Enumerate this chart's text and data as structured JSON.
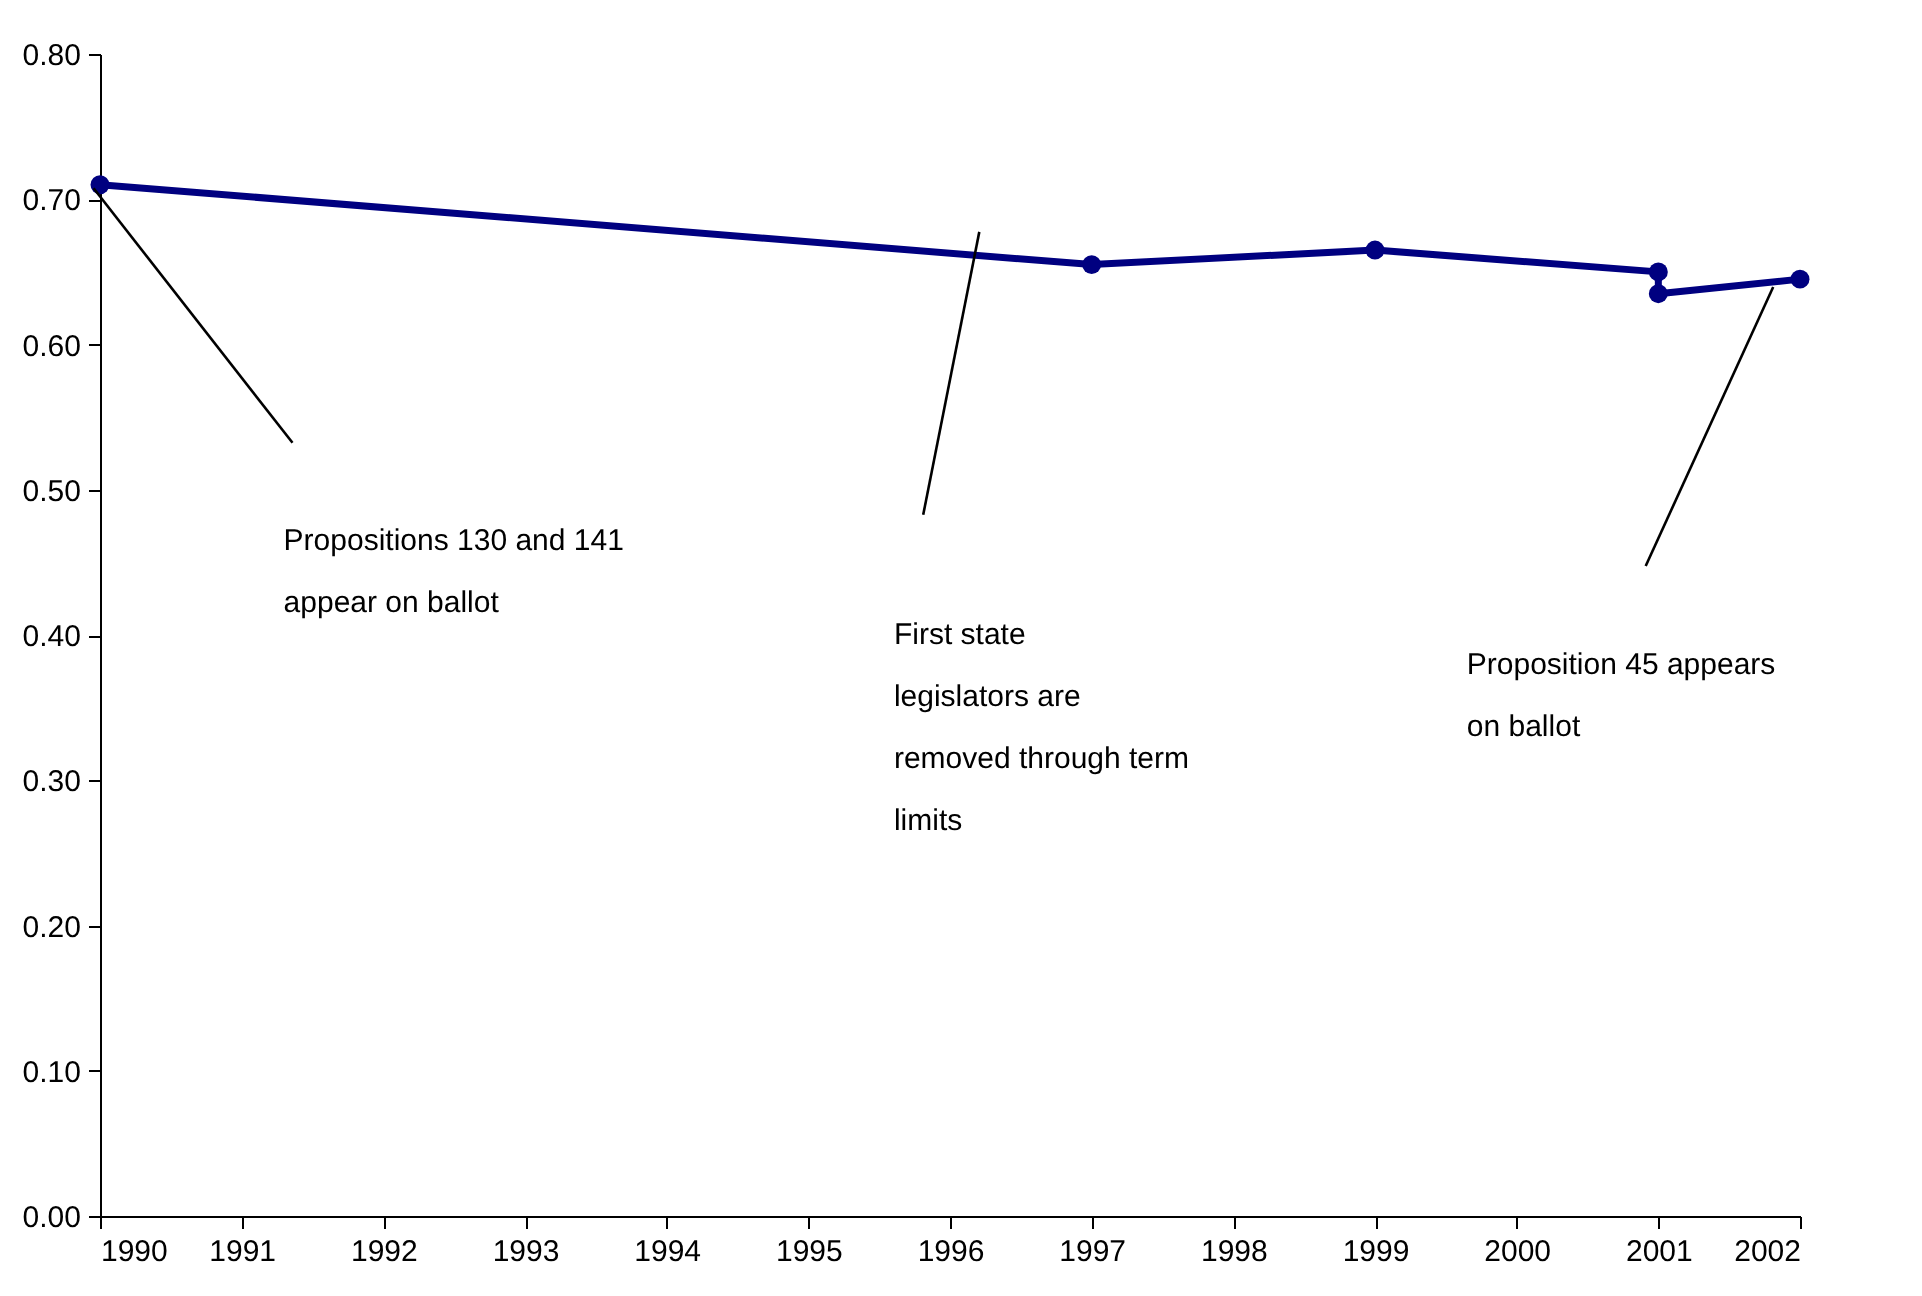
{
  "chart_data": {
    "type": "line",
    "x": [
      1990,
      1997,
      1999,
      2001,
      2001,
      2002
    ],
    "series": [
      {
        "color": "#000080",
        "values": [
          0.71,
          0.655,
          0.665,
          0.65,
          0.635,
          0.645
        ]
      }
    ],
    "marker": "circle",
    "xlim": [
      1990,
      2002
    ],
    "xticks": [
      1990,
      1991,
      1992,
      1993,
      1994,
      1995,
      1996,
      1997,
      1998,
      1999,
      2000,
      2001,
      2002
    ],
    "ylim": [
      0,
      0.8
    ],
    "yticks": [
      {
        "value": 0,
        "label": "0.00"
      },
      {
        "value": 0.1,
        "label": "0.10"
      },
      {
        "value": 0.2,
        "label": "0.20"
      },
      {
        "value": 0.3,
        "label": "0.30"
      },
      {
        "value": 0.4,
        "label": "0.40"
      },
      {
        "value": 0.5,
        "label": "0.50"
      },
      {
        "value": 0.6,
        "label": "0.60"
      },
      {
        "value": 0.7,
        "label": "0.70"
      },
      {
        "value": 0.8,
        "label": "0.80"
      }
    ],
    "annotations": [
      "Propositions 130 and 141 appear on ballot",
      "First state legislators are removed through term limits",
      "Proposition 45 appears on ballot"
    ]
  }
}
